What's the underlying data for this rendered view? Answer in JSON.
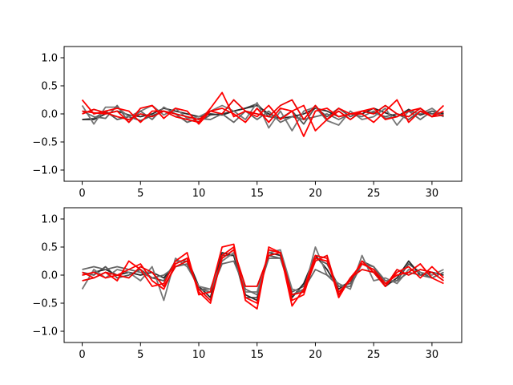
{
  "chart_data": [
    {
      "type": "line",
      "title": "",
      "xlabel": "",
      "ylabel": "",
      "xlim": [
        -1.55,
        32.55
      ],
      "ylim": [
        -1.2,
        1.2
      ],
      "grid": false,
      "x": [
        0,
        1,
        2,
        3,
        4,
        5,
        6,
        7,
        8,
        9,
        10,
        11,
        12,
        13,
        14,
        15,
        16,
        17,
        18,
        19,
        20,
        21,
        22,
        23,
        24,
        25,
        26,
        27,
        28,
        29,
        30,
        31
      ],
      "xticks": [
        0,
        5,
        10,
        15,
        20,
        25,
        30
      ],
      "xtick_labels": [
        "0",
        "5",
        "10",
        "15",
        "20",
        "25",
        "30"
      ],
      "yticks": [
        -1.0,
        -0.5,
        0.0,
        0.5,
        1.0
      ],
      "ytick_labels": [
        "−1.0",
        "−0.5",
        "0.0",
        "0.5",
        "1.0"
      ],
      "series": [
        {
          "color": "#555555",
          "values": [
            -0.1,
            -0.08,
            0.05,
            -0.1,
            -0.05,
            -0.12,
            -0.03,
            0.05,
            -0.05,
            -0.1,
            -0.14,
            -0.02,
            0.0,
            0.05,
            0.1,
            0.18,
            -0.05,
            -0.08,
            0.05,
            -0.18,
            0.12,
            -0.05,
            0.1,
            -0.05,
            0.05,
            0.02,
            -0.05,
            0.0,
            -0.1,
            0.05,
            0.0,
            0.02
          ]
        },
        {
          "color": "#2b2b2b",
          "values": [
            -0.1,
            -0.1,
            0.0,
            0.05,
            -0.02,
            -0.05,
            0.0,
            0.1,
            0.05,
            0.0,
            -0.05,
            0.0,
            -0.02,
            0.05,
            0.1,
            0.15,
            0.0,
            -0.08,
            -0.05,
            0.0,
            0.1,
            0.05,
            -0.05,
            0.0,
            0.0,
            0.1,
            0.02,
            -0.05,
            0.08,
            -0.02,
            0.05,
            0.0
          ]
        },
        {
          "color": "#777777",
          "values": [
            0.15,
            -0.18,
            0.12,
            0.12,
            -0.05,
            0.05,
            0.15,
            -0.02,
            0.1,
            -0.08,
            -0.05,
            0.05,
            0.15,
            0.05,
            -0.1,
            0.2,
            -0.25,
            0.05,
            -0.3,
            0.05,
            0.12,
            -0.12,
            -0.2,
            0.05,
            -0.1,
            -0.05,
            0.1,
            -0.2,
            0.05,
            0.0,
            0.1,
            -0.05
          ]
        },
        {
          "color": "#666666",
          "values": [
            0.05,
            -0.05,
            -0.08,
            0.15,
            -0.15,
            0.05,
            -0.1,
            0.12,
            0.0,
            -0.15,
            -0.08,
            -0.1,
            0.0,
            -0.15,
            0.05,
            -0.1,
            0.05,
            -0.15,
            -0.05,
            -0.1,
            -0.05,
            0.0,
            -0.1,
            0.0,
            -0.05,
            0.05,
            -0.08,
            -0.05,
            0.05,
            -0.1,
            0.05,
            -0.05
          ]
        },
        {
          "color": "#ff0000",
          "values": [
            0.25,
            0.0,
            0.05,
            0.1,
            0.05,
            -0.15,
            0.05,
            0.05,
            -0.05,
            -0.1,
            -0.15,
            0.1,
            0.38,
            -0.05,
            0.05,
            -0.05,
            0.15,
            -0.1,
            0.05,
            -0.4,
            0.05,
            0.1,
            -0.05,
            0.0,
            0.0,
            -0.15,
            0.05,
            0.25,
            -0.15,
            0.05,
            -0.05,
            0.15
          ]
        },
        {
          "color": "#ff0000",
          "values": [
            0.05,
            0.02,
            0.0,
            0.05,
            -0.15,
            0.1,
            0.15,
            -0.08,
            0.1,
            0.05,
            -0.18,
            0.05,
            0.1,
            0.0,
            -0.15,
            0.1,
            -0.15,
            0.1,
            0.05,
            0.15,
            -0.3,
            -0.1,
            0.1,
            0.0,
            0.05,
            0.1,
            -0.1,
            -0.05,
            0.05,
            0.1,
            -0.05,
            0.05
          ]
        },
        {
          "color": "#ee0000",
          "values": [
            0.0,
            0.08,
            0.02,
            -0.05,
            -0.1,
            0.0,
            -0.05,
            0.05,
            0.0,
            -0.05,
            -0.1,
            0.05,
            0.0,
            0.25,
            0.05,
            0.0,
            -0.05,
            0.15,
            0.25,
            -0.1,
            0.15,
            -0.1,
            0.05,
            -0.1,
            0.05,
            0.0,
            0.15,
            0.0,
            -0.05,
            0.1,
            -0.05,
            -0.02
          ]
        }
      ]
    },
    {
      "type": "line",
      "title": "",
      "xlabel": "",
      "ylabel": "",
      "xlim": [
        -1.55,
        32.55
      ],
      "ylim": [
        -1.2,
        1.2
      ],
      "grid": false,
      "x": [
        0,
        1,
        2,
        3,
        4,
        5,
        6,
        7,
        8,
        9,
        10,
        11,
        12,
        13,
        14,
        15,
        16,
        17,
        18,
        19,
        20,
        21,
        22,
        23,
        24,
        25,
        26,
        27,
        28,
        29,
        30,
        31
      ],
      "xticks": [
        0,
        5,
        10,
        15,
        20,
        25,
        30
      ],
      "xtick_labels": [
        "0",
        "5",
        "10",
        "15",
        "20",
        "25",
        "30"
      ],
      "yticks": [
        -1.0,
        -0.5,
        0.0,
        0.5,
        1.0
      ],
      "ytick_labels": [
        "−1.0",
        "−0.5",
        "0.0",
        "0.5",
        "1.0"
      ],
      "series": [
        {
          "color": "#555555",
          "values": [
            0.05,
            0.0,
            0.15,
            -0.05,
            0.0,
            0.1,
            -0.05,
            -0.1,
            0.25,
            0.25,
            -0.25,
            -0.25,
            0.35,
            0.35,
            -0.4,
            -0.4,
            0.35,
            0.3,
            -0.3,
            -0.2,
            0.3,
            0.2,
            -0.2,
            -0.15,
            0.25,
            0.15,
            -0.15,
            -0.1,
            0.2,
            0.05,
            -0.05,
            0.05
          ]
        },
        {
          "color": "#2b2b2b",
          "values": [
            0.0,
            0.05,
            0.1,
            0.0,
            0.05,
            0.0,
            0.05,
            -0.05,
            0.2,
            0.3,
            -0.2,
            -0.4,
            0.4,
            0.35,
            -0.35,
            -0.45,
            0.4,
            0.35,
            -0.4,
            -0.15,
            0.35,
            0.1,
            -0.25,
            -0.1,
            0.2,
            0.1,
            -0.2,
            -0.05,
            0.25,
            0.0,
            0.05,
            0.0
          ]
        },
        {
          "color": "#777777",
          "values": [
            -0.25,
            0.1,
            -0.05,
            0.1,
            0.05,
            -0.1,
            0.15,
            -0.45,
            0.3,
            0.15,
            -0.2,
            -0.25,
            0.25,
            0.4,
            -0.3,
            -0.3,
            0.4,
            0.45,
            -0.25,
            -0.3,
            0.5,
            0.0,
            -0.15,
            -0.25,
            0.35,
            -0.1,
            -0.05,
            -0.15,
            0.1,
            0.05,
            0.0,
            0.1
          ]
        },
        {
          "color": "#666666",
          "values": [
            0.1,
            0.15,
            0.1,
            0.15,
            0.1,
            0.05,
            -0.05,
            0.0,
            0.15,
            0.2,
            -0.25,
            -0.3,
            0.2,
            0.25,
            -0.25,
            -0.35,
            0.3,
            0.3,
            -0.35,
            -0.25,
            0.1,
            0.0,
            -0.2,
            -0.2,
            0.2,
            0.15,
            -0.1,
            -0.1,
            0.05,
            0.0,
            -0.05,
            0.05
          ]
        },
        {
          "color": "#ff0000",
          "values": [
            0.05,
            -0.05,
            0.05,
            -0.1,
            0.25,
            0.1,
            -0.2,
            -0.15,
            0.25,
            0.4,
            -0.35,
            -0.3,
            0.5,
            0.55,
            -0.45,
            -0.6,
            0.5,
            0.4,
            -0.55,
            -0.25,
            0.35,
            0.3,
            -0.4,
            -0.05,
            0.2,
            0.1,
            -0.15,
            0.0,
            0.05,
            0.2,
            -0.05,
            -0.15
          ]
        },
        {
          "color": "#ff0000",
          "values": [
            0.0,
            0.05,
            -0.05,
            0.0,
            0.1,
            0.2,
            -0.1,
            -0.25,
            0.2,
            0.3,
            -0.3,
            -0.5,
            0.35,
            0.5,
            -0.4,
            -0.5,
            0.45,
            0.4,
            -0.45,
            -0.35,
            0.3,
            0.25,
            -0.3,
            -0.1,
            0.25,
            0.05,
            -0.2,
            0.05,
            0.15,
            -0.05,
            0.15,
            -0.05
          ]
        },
        {
          "color": "#ee0000",
          "values": [
            -0.1,
            -0.05,
            0.05,
            0.0,
            -0.05,
            0.15,
            0.05,
            -0.2,
            0.15,
            0.25,
            -0.25,
            -0.45,
            0.3,
            0.45,
            -0.2,
            -0.2,
            0.35,
            0.4,
            -0.35,
            -0.3,
            0.25,
            0.35,
            -0.35,
            -0.05,
            0.1,
            0.05,
            -0.2,
            0.1,
            0.0,
            0.1,
            0.05,
            -0.1
          ]
        }
      ]
    }
  ]
}
